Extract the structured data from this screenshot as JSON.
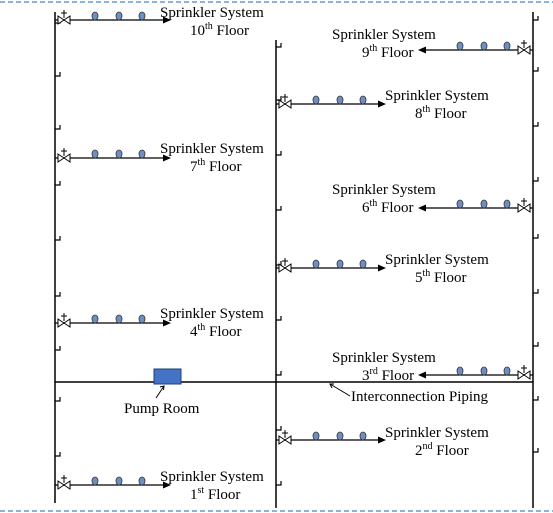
{
  "colors": {
    "frame": "#4a86c8",
    "line": "#000000",
    "sprinkler_head": "#6d8fc4",
    "pump": "#4472c4"
  },
  "systems": [
    {
      "line1": "Sprinkler System",
      "num": "10",
      "sup": "th",
      "rest": " Floor",
      "side": "left"
    },
    {
      "line1": "Sprinkler System",
      "num": "9",
      "sup": "th",
      "rest": " Floor",
      "side": "right"
    },
    {
      "line1": "Sprinkler System",
      "num": "8",
      "sup": "th",
      "rest": " Floor",
      "side": "middle"
    },
    {
      "line1": "Sprinkler System",
      "num": "7",
      "sup": "th",
      "rest": " Floor",
      "side": "left"
    },
    {
      "line1": "Sprinkler System",
      "num": "6",
      "sup": "th",
      "rest": " Floor",
      "side": "right"
    },
    {
      "line1": "Sprinkler System",
      "num": "5",
      "sup": "th",
      "rest": " Floor",
      "side": "middle"
    },
    {
      "line1": "Sprinkler System",
      "num": "4",
      "sup": "th",
      "rest": " Floor",
      "side": "left"
    },
    {
      "line1": "Sprinkler System",
      "num": "3",
      "sup": "rd",
      "rest": " Floor",
      "side": "right"
    },
    {
      "line1": "Sprinkler System",
      "num": "2",
      "sup": "nd",
      "rest": " Floor",
      "side": "middle"
    },
    {
      "line1": "Sprinkler System",
      "num": "1",
      "sup": "st",
      "rest": " Floor",
      "side": "left"
    }
  ],
  "pump_room_label": "Pump Room",
  "interconnection_label": "Interconnection Piping"
}
